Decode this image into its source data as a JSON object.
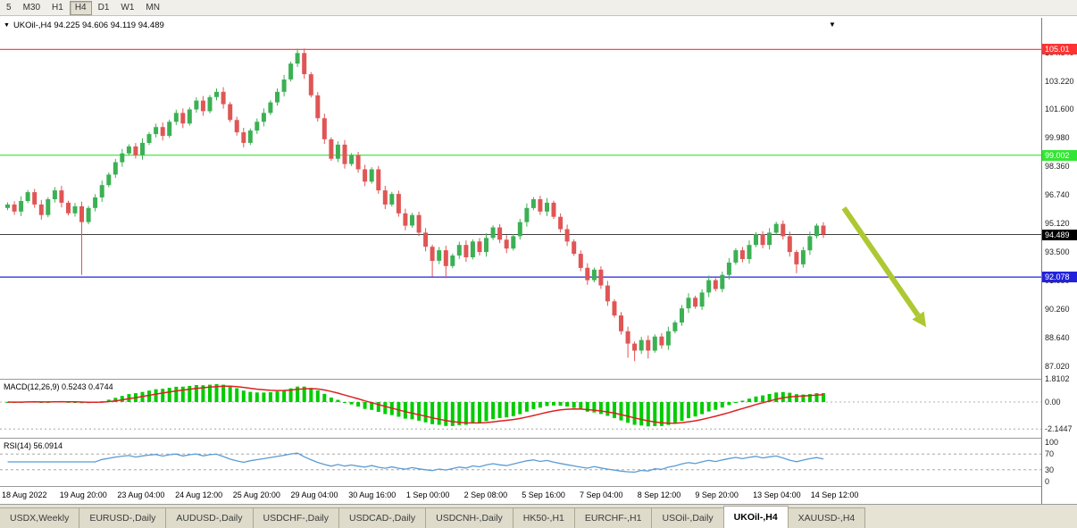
{
  "colors": {
    "up": "#3cb054",
    "down": "#e05555",
    "hline_red": "#ff3333",
    "hline_green": "#33e633",
    "hline_blue": "#2222dd",
    "current_line": "#000000",
    "macd_hist": "#00cc00",
    "macd_signal": "#dd2222",
    "rsi_line": "#5b9bd5",
    "arrow": "#adc832",
    "badge_black": "#000000"
  },
  "toolbar": {
    "timeframes": [
      {
        "label": "5",
        "active": false
      },
      {
        "label": "M30",
        "active": false
      },
      {
        "label": "H1",
        "active": false
      },
      {
        "label": "H4",
        "active": true
      },
      {
        "label": "D1",
        "active": false
      },
      {
        "label": "W1",
        "active": false
      },
      {
        "label": "MN",
        "active": false
      }
    ]
  },
  "chart_header": {
    "dropdown_icon": "▼",
    "text": "UKOil-,H4 94.225 94.606 94.119 94.489"
  },
  "end_marker": "▼",
  "price_axis": {
    "grid_values": [
      104.84,
      103.22,
      101.6,
      99.98,
      98.36,
      96.74,
      95.12,
      93.5,
      91.88,
      90.26,
      88.64,
      87.02
    ]
  },
  "hlines": [
    {
      "price": 105.01,
      "label": "105.01",
      "color_key": "hline_red"
    },
    {
      "price": 99.002,
      "label": "99.002",
      "color_key": "hline_green"
    },
    {
      "price": 92.078,
      "label": "92.078",
      "color_key": "hline_blue"
    }
  ],
  "current_price": {
    "price": 94.489,
    "label": "94.489"
  },
  "macd_panel": {
    "title": "MACD(12,26,9) 0.5243 0.4744",
    "axis_values": [
      1.8102,
      0,
      -2.1447
    ],
    "axis_labels": [
      "1.8102",
      "0.00",
      "-2.1447"
    ]
  },
  "rsi_panel": {
    "title": "RSI(14) 56.0914",
    "axis_values": [
      100,
      70,
      30,
      0
    ],
    "axis_labels": [
      "100",
      "70",
      "30",
      "0"
    ]
  },
  "time_axis": [
    "18 Aug 2022",
    "19 Aug 20:00",
    "23 Aug 04:00",
    "24 Aug 12:00",
    "25 Aug 20:00",
    "29 Aug 04:00",
    "30 Aug 16:00",
    "1 Sep 00:00",
    "2 Sep 08:00",
    "5 Sep 16:00",
    "7 Sep 04:00",
    "8 Sep 12:00",
    "9 Sep 20:00",
    "13 Sep 04:00",
    "14 Sep 12:00"
  ],
  "tabs": [
    {
      "label": "USDX,Weekly",
      "active": false
    },
    {
      "label": "EURUSD-,Daily",
      "active": false
    },
    {
      "label": "AUDUSD-,Daily",
      "active": false
    },
    {
      "label": "USDCHF-,Daily",
      "active": false
    },
    {
      "label": "USDCAD-,Daily",
      "active": false
    },
    {
      "label": "USDCNH-,Daily",
      "active": false
    },
    {
      "label": "HK50-,H1",
      "active": false
    },
    {
      "label": "EURCHF-,H1",
      "active": false
    },
    {
      "label": "USOil-,Daily",
      "active": false
    },
    {
      "label": "UKOil-,H4",
      "active": true
    },
    {
      "label": "XAUUSD-,H4",
      "active": false
    }
  ],
  "chart_data": {
    "type": "candlestick",
    "symbol": "UKOil-",
    "timeframe": "H4",
    "title": "UKOil-,H4",
    "ohlc_display": {
      "open": 94.225,
      "high": 94.606,
      "low": 94.119,
      "close": 94.489
    },
    "ylim": [
      86.3,
      106.8
    ],
    "horizontal_levels": [
      105.01,
      99.002,
      92.078
    ],
    "candles": {
      "first_open": 96.0,
      "closes": [
        96.2,
        95.8,
        96.4,
        96.9,
        96.2,
        95.6,
        96.5,
        97.0,
        96.3,
        95.7,
        96.1,
        95.2,
        96.0,
        96.6,
        97.3,
        97.9,
        98.6,
        99.1,
        99.5,
        99.0,
        99.7,
        100.2,
        100.6,
        100.1,
        100.9,
        101.4,
        100.8,
        101.6,
        102.1,
        101.5,
        102.3,
        102.6,
        101.9,
        101.0,
        100.3,
        99.7,
        100.4,
        100.9,
        101.4,
        102.0,
        102.6,
        103.3,
        104.2,
        104.8,
        103.6,
        102.4,
        101.1,
        99.9,
        98.8,
        99.6,
        98.5,
        99.0,
        98.2,
        97.5,
        98.2,
        97.0,
        96.2,
        96.8,
        95.7,
        95.0,
        95.6,
        94.6,
        93.8,
        93.0,
        93.6,
        92.7,
        93.3,
        93.9,
        93.2,
        94.1,
        93.5,
        94.3,
        94.9,
        94.2,
        93.7,
        94.4,
        95.2,
        96.0,
        96.5,
        95.8,
        96.3,
        95.5,
        94.8,
        94.1,
        93.4,
        92.6,
        91.9,
        92.5,
        91.6,
        90.7,
        89.9,
        89.0,
        88.3,
        87.9,
        88.5,
        87.9,
        88.7,
        88.2,
        89.0,
        89.5,
        90.3,
        90.9,
        90.4,
        91.2,
        91.9,
        91.4,
        92.2,
        92.9,
        93.6,
        93.1,
        93.9,
        94.5,
        93.9,
        94.6,
        95.1,
        94.4,
        93.5,
        92.8,
        93.6,
        94.4,
        95.0,
        94.489
      ],
      "specials": {
        "11": {
          "l": 92.2
        },
        "43": {
          "h": 105.05
        },
        "63": {
          "l": 92.1
        },
        "65": {
          "l": 92.02
        },
        "92": {
          "l": 87.5
        },
        "93": {
          "l": 87.3
        },
        "95": {
          "l": 87.45
        },
        "117": {
          "l": 92.3
        }
      }
    },
    "indicators": {
      "macd": {
        "name": "MACD",
        "params": [
          12,
          26,
          9
        ],
        "display_values": [
          0.5243,
          0.4744
        ],
        "range_labels": [
          1.8102,
          -2.1447
        ]
      },
      "rsi": {
        "name": "RSI",
        "params": [
          14
        ],
        "display_value": 56.0914,
        "levels": [
          70,
          30
        ]
      }
    },
    "annotations": [
      {
        "type": "arrow",
        "direction": "down-right",
        "x_from": 945,
        "price_from": 96.0,
        "x_to": 1028,
        "price_to": 89.9
      }
    ]
  }
}
